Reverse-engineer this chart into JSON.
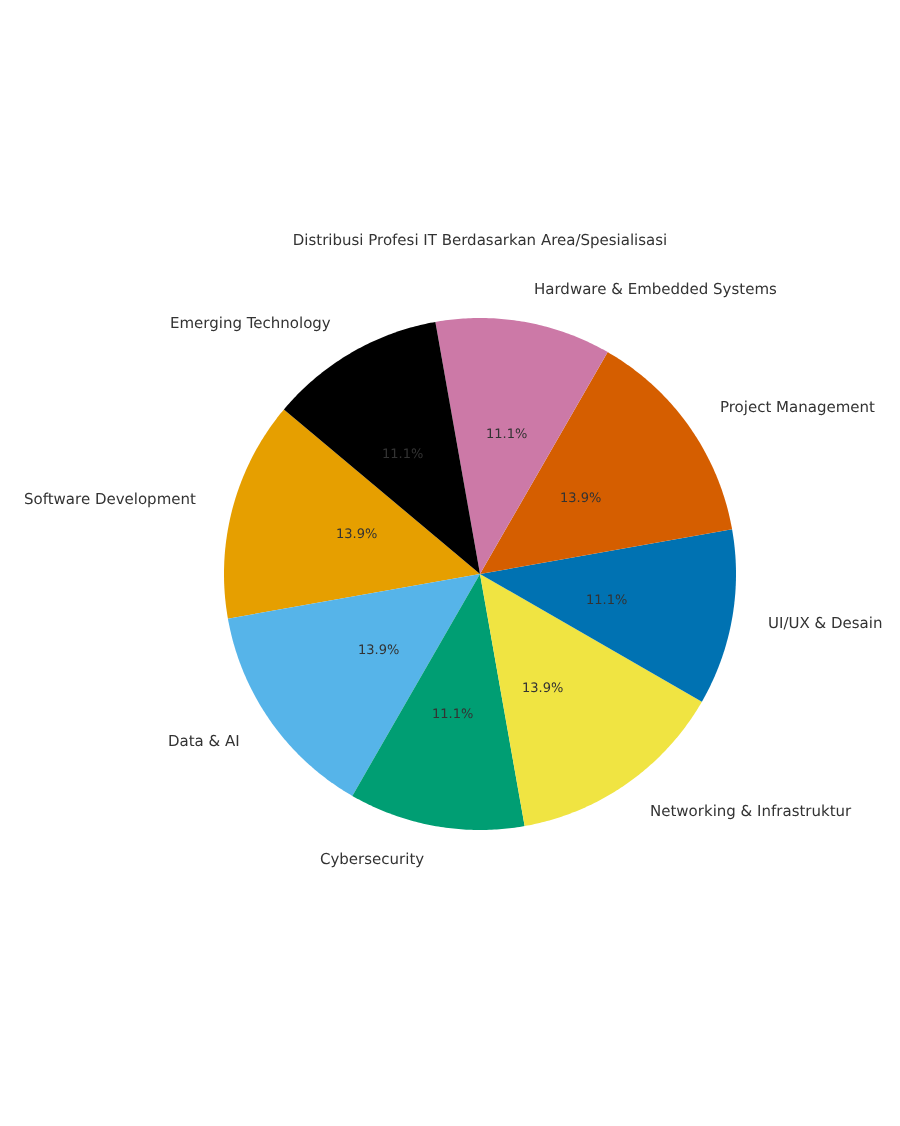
{
  "chart_data": {
    "type": "pie",
    "title": "Distribusi Profesi IT Berdasarkan Area/Spesialisasi",
    "categories": [
      "Software Development",
      "Data & AI",
      "Cybersecurity",
      "Networking & Infrastruktur",
      "UI/UX & Desain",
      "Project Management",
      "Hardware & Embedded Systems",
      "Emerging Technology"
    ],
    "values": [
      13.9,
      13.9,
      11.1,
      13.9,
      11.1,
      13.9,
      11.1,
      11.1
    ],
    "value_labels": [
      "13.9%",
      "13.9%",
      "11.1%",
      "13.9%",
      "11.1%",
      "13.9%",
      "11.1%",
      "11.1%"
    ],
    "colors": [
      "#e69f00",
      "#56b4e9",
      "#009e73",
      "#f0e442",
      "#0072b2",
      "#d55e00",
      "#cc79a7",
      "#000000"
    ]
  }
}
